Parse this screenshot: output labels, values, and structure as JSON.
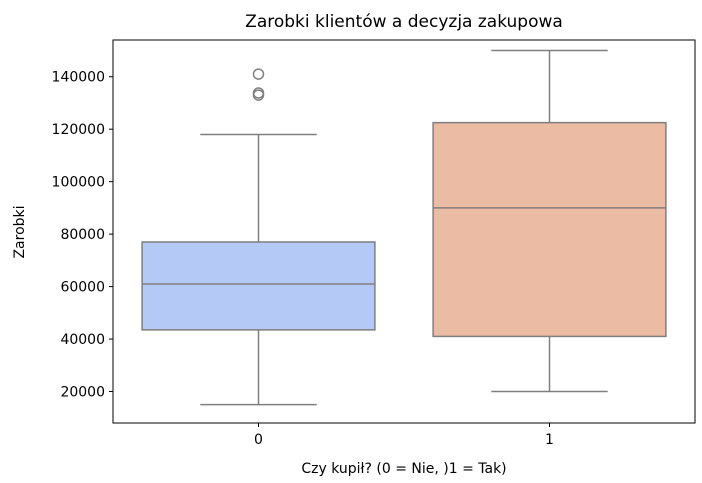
{
  "chart_data": {
    "type": "box",
    "title": "Zarobki klientów a decyzja zakupowa",
    "xlabel": "Czy kupił? (0 = Nie, )1 = Tak)",
    "ylabel": "Zarobki",
    "categories": [
      "0",
      "1"
    ],
    "ylim": [
      8000,
      154000
    ],
    "yticks": [
      20000,
      40000,
      60000,
      80000,
      100000,
      120000,
      140000
    ],
    "ytick_labels": [
      "20000",
      "40000",
      "60000",
      "80000",
      "100000",
      "120000",
      "140000"
    ],
    "grid": false,
    "boxes": [
      {
        "category": "0",
        "whisker_low": 15000,
        "q1": 43500,
        "median": 61000,
        "q3": 77000,
        "whisker_high": 118000,
        "outliers": [
          133000,
          133800,
          141000
        ],
        "fill": "#b4c9f5"
      },
      {
        "category": "1",
        "whisker_low": 20000,
        "q1": 41000,
        "median": 90000,
        "q3": 122500,
        "whisker_high": 150000,
        "outliers": [],
        "fill": "#ecbba4"
      }
    ]
  },
  "colors": {
    "line": "#7f7f7f",
    "outlier_edge": "#7f7f7f",
    "axes": "#000000"
  }
}
